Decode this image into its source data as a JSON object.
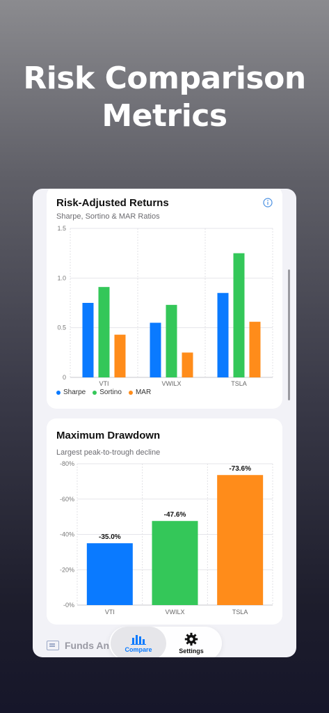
{
  "headline": {
    "line1": "Risk Comparison",
    "line2": "Metrics"
  },
  "colors": {
    "sharpe": "#0a7aff",
    "sortino": "#34c759",
    "mar": "#ff8c1a"
  },
  "risk_card": {
    "title": "Risk-Adjusted Returns",
    "subtitle": "Sharpe, Sortino & MAR Ratios",
    "info_icon": "info-icon",
    "legend": [
      "Sharpe",
      "Sortino",
      "MAR"
    ]
  },
  "drawdown_card": {
    "title": "Maximum Drawdown",
    "subtitle": "Largest peak-to-trough decline"
  },
  "tabbar": {
    "funds_label": "Funds An",
    "compare_label": "Compare",
    "settings_label": "Settings",
    "compare_icon": "bar-chart-icon",
    "settings_icon": "gear-icon"
  },
  "chart_data": [
    {
      "type": "bar",
      "title": "Risk-Adjusted Returns",
      "subtitle": "Sharpe, Sortino & MAR Ratios",
      "categories": [
        "VTI",
        "VWILX",
        "TSLA"
      ],
      "series": [
        {
          "name": "Sharpe",
          "values": [
            0.75,
            0.55,
            0.85
          ]
        },
        {
          "name": "Sortino",
          "values": [
            0.91,
            0.73,
            1.25
          ]
        },
        {
          "name": "MAR",
          "values": [
            0.43,
            0.25,
            0.56
          ]
        }
      ],
      "yticks": [
        "0",
        "0.5",
        "1.0",
        "1.5"
      ],
      "ylim": [
        0,
        1.5
      ],
      "grid": true,
      "legend": "bottom-left"
    },
    {
      "type": "bar",
      "title": "Maximum Drawdown",
      "subtitle": "Largest peak-to-trough decline",
      "categories": [
        "VTI",
        "VWILX",
        "TSLA"
      ],
      "values": [
        -35.0,
        -47.6,
        -73.6
      ],
      "labels": [
        "-35.0%",
        "-47.6%",
        "-73.6%"
      ],
      "yticks": [
        "-0%",
        "-20%",
        "-40%",
        "-60%",
        "-80%"
      ],
      "ylim": [
        0,
        -80
      ],
      "grid": true
    }
  ]
}
